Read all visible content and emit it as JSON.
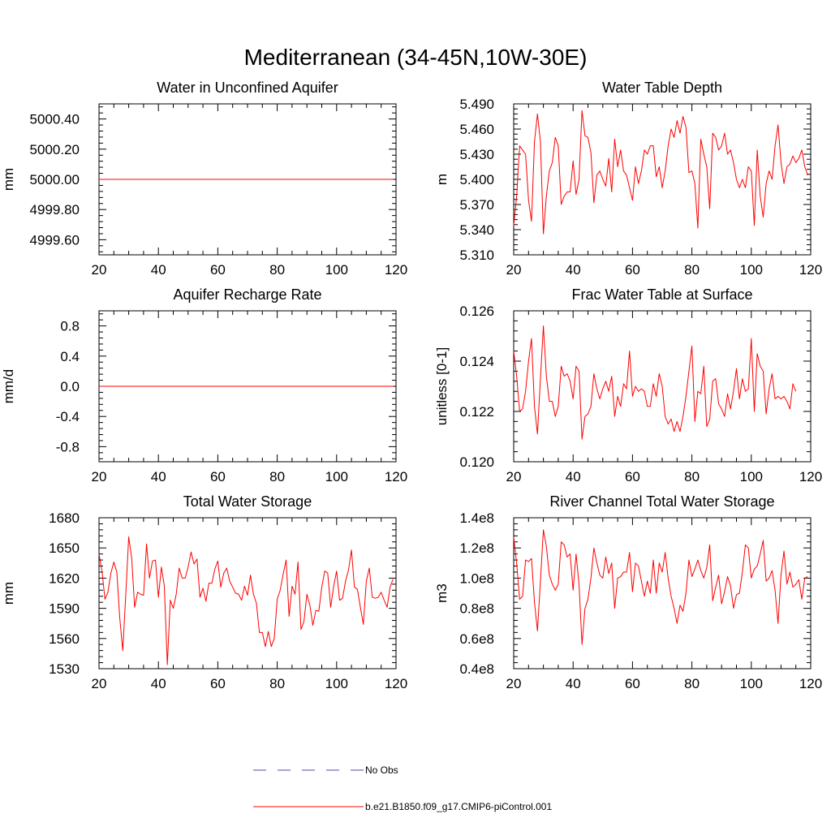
{
  "figure": {
    "title": "Mediterranean (34-45N,10W-30E)",
    "legend": [
      {
        "label": "No Obs",
        "color": "#4a4aa8",
        "style": "dashed"
      },
      {
        "label": "b.e21.B1850.f09_g17.CMIP6-piControl.001",
        "color": "#ff0000",
        "style": "solid"
      }
    ]
  },
  "chart_data": [
    {
      "type": "line",
      "title": "Water in Unconfined Aquifer",
      "xlabel": "",
      "ylabel": "mm",
      "xlim": [
        20,
        120
      ],
      "ylim": [
        4999.5,
        5000.5
      ],
      "xticks": [
        20,
        40,
        60,
        80,
        100,
        120
      ],
      "xtick_labels": [
        "20",
        "40",
        "60",
        "80",
        "100",
        "120"
      ],
      "yticks": [
        4999.6,
        4999.8,
        5000.0,
        5000.2,
        5000.4
      ],
      "ytick_labels": [
        "4999.60",
        "4999.80",
        "5000.00",
        "5000.20",
        "5000.40"
      ],
      "x_start": 20,
      "series": [
        {
          "name": "b.e21.B1850.f09_g17.CMIP6-piControl.001",
          "color": "#ff0000",
          "values": [
            5000,
            5000,
            5000,
            5000,
            5000,
            5000,
            5000,
            5000,
            5000,
            5000,
            5000,
            5000,
            5000,
            5000,
            5000,
            5000,
            5000,
            5000,
            5000,
            5000,
            5000,
            5000,
            5000,
            5000,
            5000,
            5000,
            5000,
            5000,
            5000,
            5000,
            5000,
            5000,
            5000,
            5000,
            5000,
            5000,
            5000,
            5000,
            5000,
            5000,
            5000,
            5000,
            5000,
            5000,
            5000,
            5000,
            5000,
            5000,
            5000,
            5000,
            5000,
            5000,
            5000,
            5000,
            5000,
            5000,
            5000,
            5000,
            5000,
            5000,
            5000,
            5000,
            5000,
            5000,
            5000,
            5000,
            5000,
            5000,
            5000,
            5000,
            5000,
            5000,
            5000,
            5000,
            5000,
            5000,
            5000,
            5000,
            5000,
            5000,
            5000,
            5000,
            5000,
            5000,
            5000,
            5000,
            5000,
            5000,
            5000,
            5000,
            5000,
            5000,
            5000,
            5000,
            5000,
            5000,
            5000,
            5000,
            5000,
            5000
          ]
        }
      ]
    },
    {
      "type": "line",
      "title": "Water Table Depth",
      "xlabel": "",
      "ylabel": "m",
      "xlim": [
        20,
        120
      ],
      "ylim": [
        5.31,
        5.49
      ],
      "xticks": [
        20,
        40,
        60,
        80,
        100,
        120
      ],
      "xtick_labels": [
        "20",
        "40",
        "60",
        "80",
        "100",
        "120"
      ],
      "yticks": [
        5.31,
        5.34,
        5.37,
        5.4,
        5.43,
        5.46,
        5.49
      ],
      "ytick_labels": [
        "5.310",
        "5.340",
        "5.370",
        "5.400",
        "5.430",
        "5.460",
        "5.490"
      ],
      "x_start": 20,
      "series": [
        {
          "name": "b.e21.B1850.f09_g17.CMIP6-piControl.001",
          "color": "#ff0000",
          "values": [
            5.345,
            5.38,
            5.44,
            5.435,
            5.43,
            5.375,
            5.35,
            5.445,
            5.478,
            5.445,
            5.335,
            5.38,
            5.41,
            5.42,
            5.45,
            5.44,
            5.37,
            5.38,
            5.385,
            5.385,
            5.422,
            5.382,
            5.4,
            5.482,
            5.452,
            5.45,
            5.432,
            5.372,
            5.405,
            5.41,
            5.4,
            5.392,
            5.425,
            5.385,
            5.448,
            5.415,
            5.435,
            5.41,
            5.405,
            5.39,
            5.375,
            5.415,
            5.395,
            5.41,
            5.435,
            5.43,
            5.44,
            5.44,
            5.403,
            5.415,
            5.39,
            5.41,
            5.44,
            5.46,
            5.45,
            5.47,
            5.455,
            5.475,
            5.462,
            5.408,
            5.41,
            5.395,
            5.342,
            5.448,
            5.43,
            5.415,
            5.365,
            5.455,
            5.45,
            5.435,
            5.44,
            5.455,
            5.43,
            5.435,
            5.42,
            5.4,
            5.39,
            5.4,
            5.39,
            5.415,
            5.41,
            5.345,
            5.435,
            5.38,
            5.355,
            5.395,
            5.41,
            5.4,
            5.44,
            5.465,
            5.42,
            5.395,
            5.415,
            5.418,
            5.428,
            5.42,
            5.425,
            5.435,
            5.415,
            5.405
          ]
        }
      ]
    },
    {
      "type": "line",
      "title": "Aquifer Recharge Rate",
      "xlabel": "",
      "ylabel": "mm/d",
      "xlim": [
        20,
        120
      ],
      "ylim": [
        -1.0,
        1.0
      ],
      "xticks": [
        20,
        40,
        60,
        80,
        100,
        120
      ],
      "xtick_labels": [
        "20",
        "40",
        "60",
        "80",
        "100",
        "120"
      ],
      "yticks": [
        -0.8,
        -0.4,
        0.0,
        0.4,
        0.8
      ],
      "ytick_labels": [
        "-0.8",
        "-0.4",
        "0.0",
        "0.4",
        "0.8"
      ],
      "x_start": 20,
      "series": [
        {
          "name": "b.e21.B1850.f09_g17.CMIP6-piControl.001",
          "color": "#ff0000",
          "values": [
            0,
            0,
            0,
            0,
            0,
            0,
            0,
            0,
            0,
            0,
            0,
            0,
            0,
            0,
            0,
            0,
            0,
            0,
            0,
            0,
            0,
            0,
            0,
            0,
            0,
            0,
            0,
            0,
            0,
            0,
            0,
            0,
            0,
            0,
            0,
            0,
            0,
            0,
            0,
            0,
            0,
            0,
            0,
            0,
            0,
            0,
            0,
            0,
            0,
            0,
            0,
            0,
            0,
            0,
            0,
            0,
            0,
            0,
            0,
            0,
            0,
            0,
            0,
            0,
            0,
            0,
            0,
            0,
            0,
            0,
            0,
            0,
            0,
            0,
            0,
            0,
            0,
            0,
            0,
            0,
            0,
            0,
            0,
            0,
            0,
            0,
            0,
            0,
            0,
            0,
            0,
            0,
            0,
            0,
            0,
            0,
            0,
            0,
            0,
            0
          ]
        }
      ]
    },
    {
      "type": "line",
      "title": "Frac Water Table at Surface",
      "xlabel": "",
      "ylabel": "unitless [0-1]",
      "xlim": [
        20,
        120
      ],
      "ylim": [
        0.12,
        0.126
      ],
      "xticks": [
        20,
        40,
        60,
        80,
        100,
        120
      ],
      "xtick_labels": [
        "20",
        "40",
        "60",
        "80",
        "100",
        "120"
      ],
      "yticks": [
        0.12,
        0.122,
        0.124,
        0.126
      ],
      "ytick_labels": [
        "0.120",
        "0.122",
        "0.124",
        "0.126"
      ],
      "x_start": 20,
      "series": [
        {
          "name": "b.e21.B1850.f09_g17.CMIP6-piControl.001",
          "color": "#ff0000",
          "values": [
            0.1244,
            0.1234,
            0.122,
            0.1221,
            0.1228,
            0.124,
            0.1249,
            0.1222,
            0.1211,
            0.1233,
            0.1254,
            0.1234,
            0.1224,
            0.1224,
            0.1218,
            0.1222,
            0.1238,
            0.1234,
            0.1235,
            0.1232,
            0.1225,
            0.1238,
            0.1236,
            0.1209,
            0.1218,
            0.1219,
            0.1222,
            0.1235,
            0.1229,
            0.1225,
            0.1229,
            0.1232,
            0.1228,
            0.1234,
            0.1218,
            0.1226,
            0.1222,
            0.1231,
            0.1229,
            0.1244,
            0.1226,
            0.123,
            0.1228,
            0.1229,
            0.1228,
            0.1222,
            0.1222,
            0.1231,
            0.1226,
            0.1235,
            0.123,
            0.1218,
            0.1215,
            0.1217,
            0.1212,
            0.1216,
            0.1212,
            0.1218,
            0.1226,
            0.1236,
            0.1246,
            0.1216,
            0.1228,
            0.1227,
            0.1238,
            0.1214,
            0.1217,
            0.1232,
            0.1233,
            0.1223,
            0.1221,
            0.1218,
            0.1227,
            0.1221,
            0.1228,
            0.1237,
            0.1225,
            0.1233,
            0.1228,
            0.1229,
            0.1249,
            0.122,
            0.1243,
            0.1238,
            0.1236,
            0.1219,
            0.1229,
            0.1235,
            0.1225,
            0.1226,
            0.1225,
            0.1226,
            0.1224,
            0.1221,
            0.1231,
            0.1228
          ]
        }
      ]
    },
    {
      "type": "line",
      "title": "Total Water Storage",
      "xlabel": "",
      "ylabel": "mm",
      "xlim": [
        20,
        120
      ],
      "ylim": [
        1530,
        1680
      ],
      "xticks": [
        20,
        40,
        60,
        80,
        100,
        120
      ],
      "xtick_labels": [
        "20",
        "40",
        "60",
        "80",
        "100",
        "120"
      ],
      "yticks": [
        1530,
        1560,
        1590,
        1620,
        1650,
        1680
      ],
      "ytick_labels": [
        "1530",
        "1560",
        "1590",
        "1620",
        "1650",
        "1680"
      ],
      "x_start": 20,
      "series": [
        {
          "name": "b.e21.B1850.f09_g17.CMIP6-piControl.001",
          "color": "#ff0000",
          "values": [
            1644,
            1627,
            1599,
            1606,
            1625,
            1636,
            1626,
            1580,
            1548,
            1603,
            1661,
            1640,
            1591,
            1606,
            1604,
            1603,
            1654,
            1620,
            1637,
            1638,
            1601,
            1631,
            1612,
            1534,
            1598,
            1590,
            1604,
            1630,
            1620,
            1620,
            1631,
            1646,
            1634,
            1639,
            1601,
            1610,
            1597,
            1615,
            1615,
            1629,
            1637,
            1611,
            1625,
            1630,
            1617,
            1611,
            1605,
            1604,
            1598,
            1612,
            1603,
            1623,
            1604,
            1595,
            1566,
            1566,
            1552,
            1567,
            1552,
            1560,
            1599,
            1608,
            1624,
            1638,
            1582,
            1612,
            1604,
            1636,
            1569,
            1577,
            1604,
            1593,
            1573,
            1588,
            1587,
            1611,
            1627,
            1625,
            1591,
            1612,
            1627,
            1598,
            1600,
            1617,
            1628,
            1648,
            1611,
            1609,
            1591,
            1574,
            1617,
            1630,
            1601,
            1600,
            1601,
            1606,
            1598,
            1591,
            1611,
            1619
          ]
        }
      ]
    },
    {
      "type": "line",
      "title": "River Channel Total Water Storage",
      "xlabel": "",
      "ylabel": "m3",
      "xlim": [
        20,
        120
      ],
      "ylim": [
        40000000.0,
        140000000.0
      ],
      "xticks": [
        20,
        40,
        60,
        80,
        100,
        120
      ],
      "xtick_labels": [
        "20",
        "40",
        "60",
        "80",
        "100",
        "120"
      ],
      "yticks": [
        40000000.0,
        60000000.0,
        80000000.0,
        100000000.0,
        120000000.0,
        140000000.0
      ],
      "ytick_labels": [
        "0.4e8",
        "0.6e8",
        "0.8e8",
        "1.0e8",
        "1.2e8",
        "1.4e8"
      ],
      "x_start": 20,
      "series": [
        {
          "name": "b.e21.B1850.f09_g17.CMIP6-piControl.001",
          "color": "#ff0000",
          "values": [
            127000000.0,
            110000000.0,
            86000000.0,
            88000000.0,
            112000000.0,
            111000000.0,
            113000000.0,
            84000000.0,
            65000000.0,
            98000000.0,
            132000000.0,
            121000000.0,
            102000000.0,
            96000000.0,
            92000000.0,
            96000000.0,
            124000000.0,
            122000000.0,
            114000000.0,
            116000000.0,
            92000000.0,
            116000000.0,
            96000000.0,
            56000000.0,
            80000000.0,
            86000000.0,
            100000000.0,
            120000000.0,
            110000000.0,
            102000000.0,
            100000000.0,
            114000000.0,
            103000000.0,
            110000000.0,
            80000000.0,
            100000000.0,
            101000000.0,
            104000000.0,
            104000000.0,
            117000000.0,
            91000000.0,
            110000000.0,
            108000000.0,
            98000000.0,
            88000000.0,
            98000000.0,
            90000000.0,
            112000000.0,
            90000000.0,
            110000000.0,
            104000000.0,
            117000000.0,
            100000000.0,
            88000000.0,
            80000000.0,
            70000000.0,
            82000000.0,
            78000000.0,
            90000000.0,
            112000000.0,
            101000000.0,
            106000000.0,
            112000000.0,
            105000000.0,
            100000000.0,
            107000000.0,
            122000000.0,
            85000000.0,
            94000000.0,
            102000000.0,
            83000000.0,
            91000000.0,
            101000000.0,
            95000000.0,
            80000000.0,
            89000000.0,
            90000000.0,
            104000000.0,
            122000000.0,
            120000000.0,
            100000000.0,
            106000000.0,
            108000000.0,
            116000000.0,
            125000000.0,
            98000000.0,
            100000000.0,
            105000000.0,
            92000000.0,
            70000000.0,
            102000000.0,
            118000000.0,
            96000000.0,
            104000000.0,
            94000000.0,
            96000000.0,
            99000000.0,
            86000000.0,
            100000000.0,
            101000000.0
          ]
        }
      ]
    }
  ]
}
